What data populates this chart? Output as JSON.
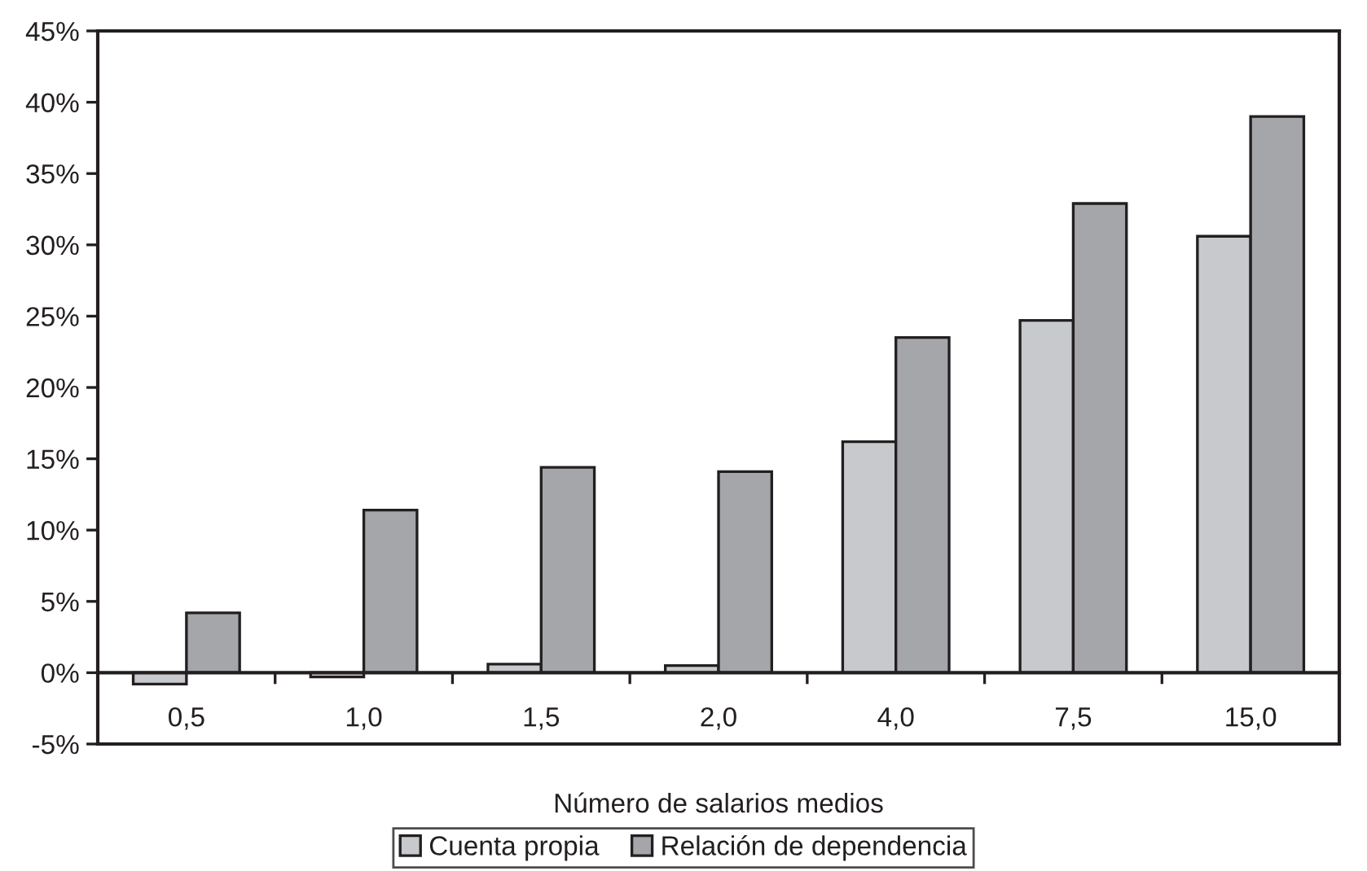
{
  "chart_data": {
    "type": "bar",
    "xlabel": "Número de salarios medios",
    "categories": [
      "0,5",
      "1,0",
      "1,5",
      "2,0",
      "4,0",
      "7,5",
      "15,0"
    ],
    "series": [
      {
        "name": "Cuenta propia",
        "color": "#c8c9cc",
        "values": [
          -0.8,
          -0.3,
          0.6,
          0.5,
          16.2,
          24.7,
          30.6
        ]
      },
      {
        "name": "Relación de dependencia",
        "color": "#a5a6a9",
        "values": [
          4.2,
          11.4,
          14.4,
          14.1,
          23.5,
          32.9,
          39.0
        ]
      }
    ],
    "ylim": [
      -5,
      45
    ],
    "yticks": [
      {
        "value": -5,
        "label": "-5%"
      },
      {
        "value": 0,
        "label": "0%"
      },
      {
        "value": 5,
        "label": "5%"
      },
      {
        "value": 10,
        "label": "10%"
      },
      {
        "value": 15,
        "label": "15%"
      },
      {
        "value": 20,
        "label": "20%"
      },
      {
        "value": 25,
        "label": "25%"
      },
      {
        "value": 30,
        "label": "30%"
      },
      {
        "value": 35,
        "label": "35%"
      },
      {
        "value": 40,
        "label": "40%"
      },
      {
        "value": 45,
        "label": "45%"
      }
    ],
    "legend": "bottom"
  }
}
